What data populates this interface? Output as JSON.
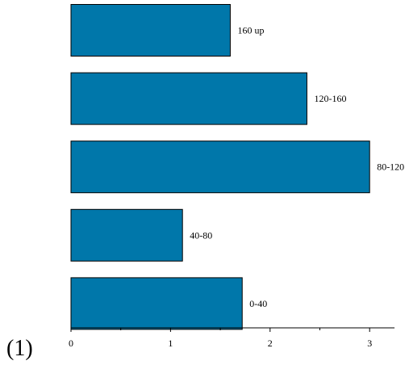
{
  "panel_label": "(1)",
  "chart_data": {
    "type": "bar",
    "orientation": "horizontal",
    "categories": [
      "160 up",
      "120-160",
      "80-120",
      "40-80",
      "0-40"
    ],
    "values": [
      1.6,
      2.37,
      3.0,
      1.12,
      1.72
    ],
    "x_ticks": [
      "0",
      "1",
      "2",
      "3"
    ],
    "xlim": [
      0,
      3.25
    ],
    "grid": false,
    "colors": {
      "bar": "#0077AA",
      "outline": "#000000"
    }
  }
}
